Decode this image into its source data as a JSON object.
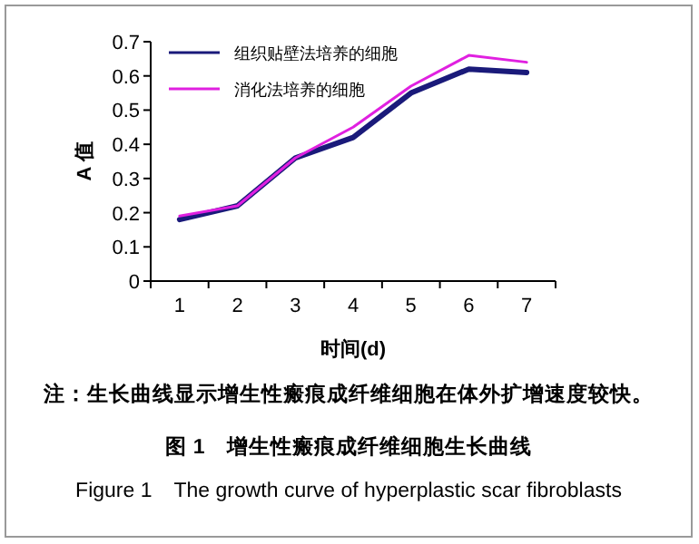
{
  "chart_data": {
    "type": "line",
    "categories": [
      "1",
      "2",
      "3",
      "4",
      "5",
      "6",
      "7"
    ],
    "series": [
      {
        "name": "组织贴壁法培养的细胞",
        "color": "#1a1a7a",
        "values": [
          0.18,
          0.22,
          0.36,
          0.42,
          0.55,
          0.62,
          0.61
        ]
      },
      {
        "name": "消化法培养的细胞",
        "color": "#e020e0",
        "values": [
          0.19,
          0.22,
          0.36,
          0.45,
          0.57,
          0.66,
          0.64
        ]
      }
    ],
    "ylim": [
      0,
      0.7
    ],
    "yticks": [
      0,
      0.1,
      0.2,
      0.3,
      0.4,
      0.5,
      0.6,
      0.7
    ],
    "xlabel": "时间(d)",
    "ylabel": "A 值",
    "legend": "top left",
    "annotations": [
      "注：生长曲线显示增生性瘢痕成纤维细胞在体外扩增速度较快。",
      "图 1　增生性瘢痕成纤维细胞生长曲线",
      "Figure 1　The growth curve of hyperplastic scar fibroblasts"
    ]
  }
}
